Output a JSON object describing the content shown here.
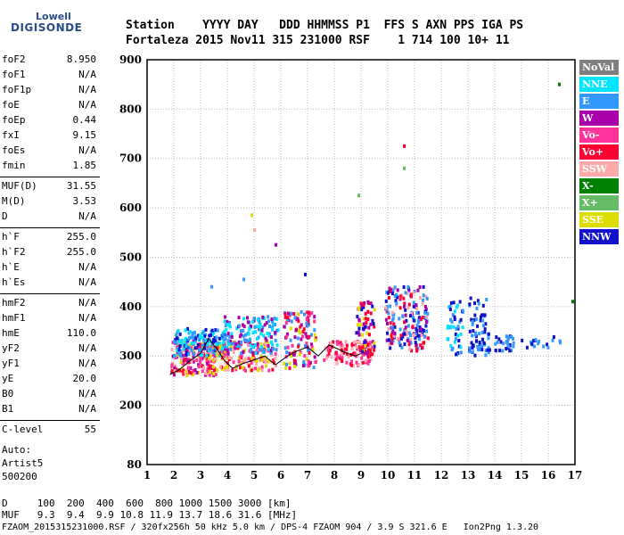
{
  "logo": {
    "line1": "Lowell",
    "line2": "DIGISONDE"
  },
  "header": {
    "line1": "Station    YYYY DAY   DDD HHMMSS P1  FFS S AXN PPS IGA PS",
    "line2": "Fortaleza 2015 Nov11 315 231000 RSF    1 714 100 10+ 11"
  },
  "params": [
    {
      "name": "foF2",
      "value": "8.950"
    },
    {
      "name": "foF1",
      "value": "N/A"
    },
    {
      "name": "foF1p",
      "value": "N/A"
    },
    {
      "name": "foE",
      "value": "N/A"
    },
    {
      "name": "foEp",
      "value": "0.44"
    },
    {
      "name": "fxI",
      "value": "9.15"
    },
    {
      "name": "foEs",
      "value": "N/A"
    },
    {
      "name": "fmin",
      "value": "1.85"
    },
    {
      "name": "MUF(D)",
      "value": "31.55"
    },
    {
      "name": "M(D)",
      "value": "3.53"
    },
    {
      "name": "D",
      "value": "N/A"
    },
    {
      "name": "h`F",
      "value": "255.0"
    },
    {
      "name": "h`F2",
      "value": "255.0"
    },
    {
      "name": "h`E",
      "value": "N/A"
    },
    {
      "name": "h`Es",
      "value": "N/A"
    },
    {
      "name": "hmF2",
      "value": "N/A"
    },
    {
      "name": "hmF1",
      "value": "N/A"
    },
    {
      "name": "hmE",
      "value": "110.0"
    },
    {
      "name": "yF2",
      "value": "N/A"
    },
    {
      "name": "yF1",
      "value": "N/A"
    },
    {
      "name": "yE",
      "value": "20.0"
    },
    {
      "name": "B0",
      "value": "N/A"
    },
    {
      "name": "B1",
      "value": "N/A"
    },
    {
      "name": "C-level",
      "value": "55"
    }
  ],
  "auto": [
    "Auto:",
    "Artist5",
    "500200"
  ],
  "footer": {
    "d_row": "D     100  200  400  600  800 1000 1500 3000 [km]",
    "muf_row": "MUF   9.3  9.4  9.9 10.8 11.9 13.7 18.6 31.6 [MHz]",
    "file_row": "FZAOM_2015315231000.RSF / 320fx256h 50 kHz 5.0 km / DPS-4 FZAOM 904 / 3.9 S 321.6 E   Ion2Png 1.3.20"
  },
  "legend": [
    {
      "label": "NoVal",
      "color": "#7f7f7f"
    },
    {
      "label": "NNE",
      "color": "#00e5ff"
    },
    {
      "label": "E",
      "color": "#3399ff"
    },
    {
      "label": "W",
      "color": "#aa00aa"
    },
    {
      "label": "Vo-",
      "color": "#ff3399"
    },
    {
      "label": "Vo+",
      "color": "#ff0033"
    },
    {
      "label": "SSW",
      "color": "#ffaaaa"
    },
    {
      "label": "X-",
      "color": "#008000"
    },
    {
      "label": "X+",
      "color": "#66bb66"
    },
    {
      "label": "SSE",
      "color": "#dddd00"
    },
    {
      "label": "NNW",
      "color": "#1111cc"
    }
  ],
  "chart_data": {
    "type": "scatter",
    "xlabel": "",
    "ylabel": "",
    "xlim": [
      1,
      17
    ],
    "ylim": [
      80,
      900
    ],
    "xticks": [
      "1",
      "2",
      "3",
      "4",
      "5",
      "6",
      "7",
      "8",
      "9",
      "10",
      "11",
      "12",
      "13",
      "14",
      "15",
      "16",
      "17"
    ],
    "yticks": [
      "80",
      "200",
      "300",
      "400",
      "500",
      "600",
      "700",
      "800",
      "900"
    ],
    "grid": true,
    "trace": {
      "x": [
        1.85,
        2.2,
        2.6,
        3.0,
        3.3,
        3.6,
        3.9,
        4.2,
        4.6,
        5.0,
        5.4,
        5.8,
        6.2,
        6.6,
        7.0,
        7.4,
        7.8,
        8.1,
        8.5,
        8.8,
        9.0
      ],
      "y": [
        262,
        272,
        290,
        305,
        335,
        315,
        290,
        275,
        285,
        292,
        300,
        282,
        298,
        310,
        318,
        300,
        322,
        315,
        305,
        300,
        305
      ]
    },
    "clusters": [
      {
        "x": [
          1.9,
          3.6
        ],
        "y": [
          260,
          330
        ],
        "colors": [
          "#ff0033",
          "#ffaaaa",
          "#ff3399",
          "#dddd00",
          "#aa00aa"
        ],
        "n": 220
      },
      {
        "x": [
          2.0,
          4.0
        ],
        "y": [
          300,
          355
        ],
        "colors": [
          "#3399ff",
          "#00e5ff",
          "#1111cc"
        ],
        "n": 140
      },
      {
        "x": [
          3.6,
          5.8
        ],
        "y": [
          270,
          330
        ],
        "colors": [
          "#dddd00",
          "#ff0033",
          "#ff3399",
          "#ffaaaa"
        ],
        "n": 170
      },
      {
        "x": [
          3.8,
          5.9
        ],
        "y": [
          305,
          380
        ],
        "colors": [
          "#3399ff",
          "#00e5ff",
          "#aa00aa"
        ],
        "n": 150
      },
      {
        "x": [
          6.1,
          7.3
        ],
        "y": [
          275,
          390
        ],
        "colors": [
          "#ff0033",
          "#dddd00",
          "#ff3399",
          "#3399ff",
          "#aa00aa"
        ],
        "n": 120
      },
      {
        "x": [
          7.6,
          9.4
        ],
        "y": [
          280,
          330
        ],
        "colors": [
          "#ff0033",
          "#ff3399",
          "#ffaaaa"
        ],
        "n": 110
      },
      {
        "x": [
          8.8,
          9.5
        ],
        "y": [
          300,
          410
        ],
        "colors": [
          "#aa00aa",
          "#1111cc",
          "#ff0033",
          "#dddd00"
        ],
        "n": 70
      },
      {
        "x": [
          9.9,
          11.5
        ],
        "y": [
          310,
          440
        ],
        "colors": [
          "#1111cc",
          "#ff0033",
          "#aa00aa",
          "#ffaaaa",
          "#3399ff"
        ],
        "n": 200
      },
      {
        "x": [
          12.2,
          12.8
        ],
        "y": [
          300,
          410
        ],
        "colors": [
          "#1111cc",
          "#00e5ff",
          "#3399ff"
        ],
        "n": 45
      },
      {
        "x": [
          13.0,
          13.8
        ],
        "y": [
          300,
          420
        ],
        "colors": [
          "#1111cc",
          "#3399ff"
        ],
        "n": 70
      },
      {
        "x": [
          14.0,
          14.7
        ],
        "y": [
          310,
          340
        ],
        "colors": [
          "#1111cc",
          "#3399ff"
        ],
        "n": 30
      },
      {
        "x": [
          15.0,
          16.5
        ],
        "y": [
          315,
          340
        ],
        "colors": [
          "#1111cc",
          "#3399ff"
        ],
        "n": 18
      }
    ],
    "isolated": [
      {
        "x": 10.6,
        "y": 725,
        "color": "#ff0033"
      },
      {
        "x": 10.6,
        "y": 680,
        "color": "#66bb66"
      },
      {
        "x": 16.4,
        "y": 850,
        "color": "#008000"
      },
      {
        "x": 4.9,
        "y": 585,
        "color": "#dddd00"
      },
      {
        "x": 5.0,
        "y": 555,
        "color": "#ffaaaa"
      },
      {
        "x": 6.9,
        "y": 465,
        "color": "#1111cc"
      },
      {
        "x": 4.6,
        "y": 455,
        "color": "#3399ff"
      },
      {
        "x": 5.8,
        "y": 525,
        "color": "#aa00aa"
      },
      {
        "x": 8.9,
        "y": 625,
        "color": "#66bb66"
      },
      {
        "x": 16.9,
        "y": 410,
        "color": "#008000"
      },
      {
        "x": 3.4,
        "y": 440,
        "color": "#3399ff"
      }
    ]
  }
}
